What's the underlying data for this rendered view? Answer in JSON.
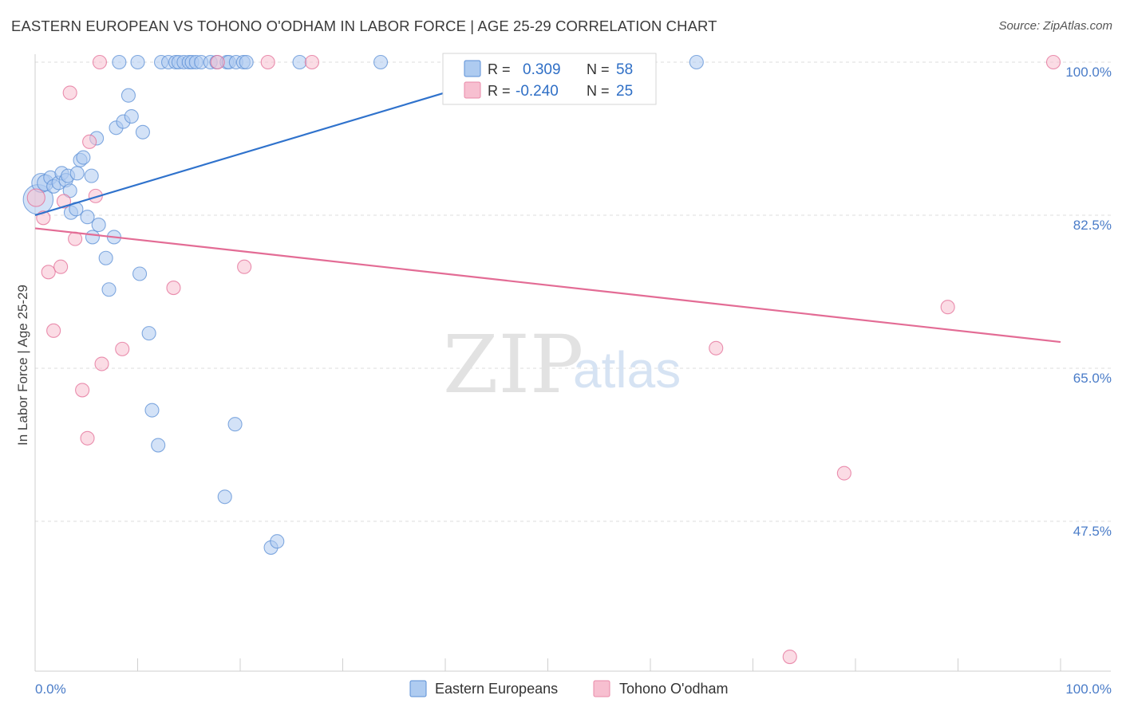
{
  "title": "EASTERN EUROPEAN VS TOHONO O'ODHAM IN LABOR FORCE | AGE 25-29 CORRELATION CHART",
  "source": "Source: ZipAtlas.com",
  "watermark": {
    "zip": "ZIP",
    "atlas": "atlas"
  },
  "legend": {
    "r_label": "R =",
    "n_label": "N =",
    "rows": [
      {
        "r": "0.309",
        "n": "58",
        "fill": "#aecbf0",
        "stroke": "#5b8fd6"
      },
      {
        "r": "-0.240",
        "n": "25",
        "fill": "#f7bfd0",
        "stroke": "#e98aa8"
      }
    ]
  },
  "chart_data": {
    "type": "scatter",
    "title": "EASTERN EUROPEAN VS TOHONO O'ODHAM IN LABOR FORCE | AGE 25-29 CORRELATION CHART",
    "xlabel": "",
    "ylabel": "In Labor Force | Age 25-29",
    "xlim": [
      0,
      100
    ],
    "ylim": [
      29.5,
      101.5
    ],
    "x_tick_labels": [
      "0.0%",
      "100.0%"
    ],
    "y_ticks": [
      47.5,
      65.0,
      82.5,
      100.0
    ],
    "y_tick_labels": [
      "47.5%",
      "65.0%",
      "82.5%",
      "100.0%"
    ],
    "grid": true,
    "legend_position": "top-center",
    "series": [
      {
        "name": "Eastern Europeans",
        "color": "#5b8fd6",
        "fill": "#aecbf0",
        "trend": {
          "x": [
            0,
            48.5
          ],
          "y": [
            82.5,
            99.5
          ]
        },
        "points": [
          {
            "x": 0.3,
            "y": 84.3,
            "s": 2.2
          },
          {
            "x": 0.6,
            "y": 86.2,
            "s": 1.4
          },
          {
            "x": 1.0,
            "y": 86.2,
            "s": 1.2
          },
          {
            "x": 1.5,
            "y": 86.8
          },
          {
            "x": 1.8,
            "y": 85.8
          },
          {
            "x": 2.3,
            "y": 86.2
          },
          {
            "x": 2.6,
            "y": 87.3
          },
          {
            "x": 3.0,
            "y": 86.5
          },
          {
            "x": 3.2,
            "y": 87.0
          },
          {
            "x": 3.5,
            "y": 82.8
          },
          {
            "x": 3.4,
            "y": 85.3
          },
          {
            "x": 4.0,
            "y": 83.2
          },
          {
            "x": 4.1,
            "y": 87.3
          },
          {
            "x": 4.4,
            "y": 88.8
          },
          {
            "x": 4.7,
            "y": 89.1
          },
          {
            "x": 5.1,
            "y": 82.3
          },
          {
            "x": 5.5,
            "y": 87.0
          },
          {
            "x": 5.6,
            "y": 80.0
          },
          {
            "x": 6.0,
            "y": 91.3
          },
          {
            "x": 6.2,
            "y": 81.4
          },
          {
            "x": 6.9,
            "y": 77.6
          },
          {
            "x": 7.2,
            "y": 74.0
          },
          {
            "x": 7.7,
            "y": 80.0
          },
          {
            "x": 7.9,
            "y": 92.5
          },
          {
            "x": 8.2,
            "y": 100.0
          },
          {
            "x": 8.6,
            "y": 93.2
          },
          {
            "x": 9.1,
            "y": 96.2
          },
          {
            "x": 9.4,
            "y": 93.8
          },
          {
            "x": 10.0,
            "y": 100.0
          },
          {
            "x": 10.2,
            "y": 75.8
          },
          {
            "x": 10.5,
            "y": 92.0
          },
          {
            "x": 11.1,
            "y": 69.0
          },
          {
            "x": 11.4,
            "y": 60.2
          },
          {
            "x": 12.0,
            "y": 56.2
          },
          {
            "x": 12.3,
            "y": 100.0
          },
          {
            "x": 13.0,
            "y": 100.0
          },
          {
            "x": 13.7,
            "y": 100.0
          },
          {
            "x": 14.0,
            "y": 100.0
          },
          {
            "x": 14.5,
            "y": 100.0
          },
          {
            "x": 15.0,
            "y": 100.0
          },
          {
            "x": 15.3,
            "y": 100.0
          },
          {
            "x": 15.7,
            "y": 100.0
          },
          {
            "x": 16.2,
            "y": 100.0
          },
          {
            "x": 17.1,
            "y": 100.0
          },
          {
            "x": 17.7,
            "y": 100.0
          },
          {
            "x": 18.7,
            "y": 100.0
          },
          {
            "x": 18.9,
            "y": 100.0
          },
          {
            "x": 19.6,
            "y": 100.0
          },
          {
            "x": 20.3,
            "y": 100.0
          },
          {
            "x": 20.6,
            "y": 100.0
          },
          {
            "x": 23.0,
            "y": 44.5
          },
          {
            "x": 23.6,
            "y": 45.2
          },
          {
            "x": 18.5,
            "y": 50.3
          },
          {
            "x": 19.5,
            "y": 58.6
          },
          {
            "x": 25.8,
            "y": 100.0
          },
          {
            "x": 33.7,
            "y": 100.0
          },
          {
            "x": 43.9,
            "y": 100.0
          },
          {
            "x": 64.5,
            "y": 100.0
          }
        ]
      },
      {
        "name": "Tohono O'odham",
        "color": "#e36c95",
        "fill": "#f7bfd0",
        "trend": {
          "x": [
            0,
            100
          ],
          "y": [
            81.0,
            68.0
          ]
        },
        "points": [
          {
            "x": 0.1,
            "y": 84.5,
            "s": 1.3
          },
          {
            "x": 0.8,
            "y": 82.2
          },
          {
            "x": 1.3,
            "y": 76.0
          },
          {
            "x": 1.8,
            "y": 69.3
          },
          {
            "x": 2.5,
            "y": 76.6
          },
          {
            "x": 2.8,
            "y": 84.1
          },
          {
            "x": 3.4,
            "y": 96.5
          },
          {
            "x": 3.9,
            "y": 79.8
          },
          {
            "x": 4.6,
            "y": 62.5
          },
          {
            "x": 5.1,
            "y": 57.0
          },
          {
            "x": 5.3,
            "y": 90.9
          },
          {
            "x": 5.9,
            "y": 84.7
          },
          {
            "x": 6.5,
            "y": 65.5
          },
          {
            "x": 6.3,
            "y": 100.0
          },
          {
            "x": 8.5,
            "y": 67.2
          },
          {
            "x": 13.5,
            "y": 74.2
          },
          {
            "x": 17.8,
            "y": 100.0
          },
          {
            "x": 20.4,
            "y": 76.6
          },
          {
            "x": 22.7,
            "y": 100.0
          },
          {
            "x": 27.0,
            "y": 100.0
          },
          {
            "x": 66.4,
            "y": 67.3
          },
          {
            "x": 73.6,
            "y": 32.0
          },
          {
            "x": 78.9,
            "y": 53.0
          },
          {
            "x": 89.0,
            "y": 72.0
          },
          {
            "x": 99.3,
            "y": 100.0
          }
        ]
      }
    ]
  }
}
